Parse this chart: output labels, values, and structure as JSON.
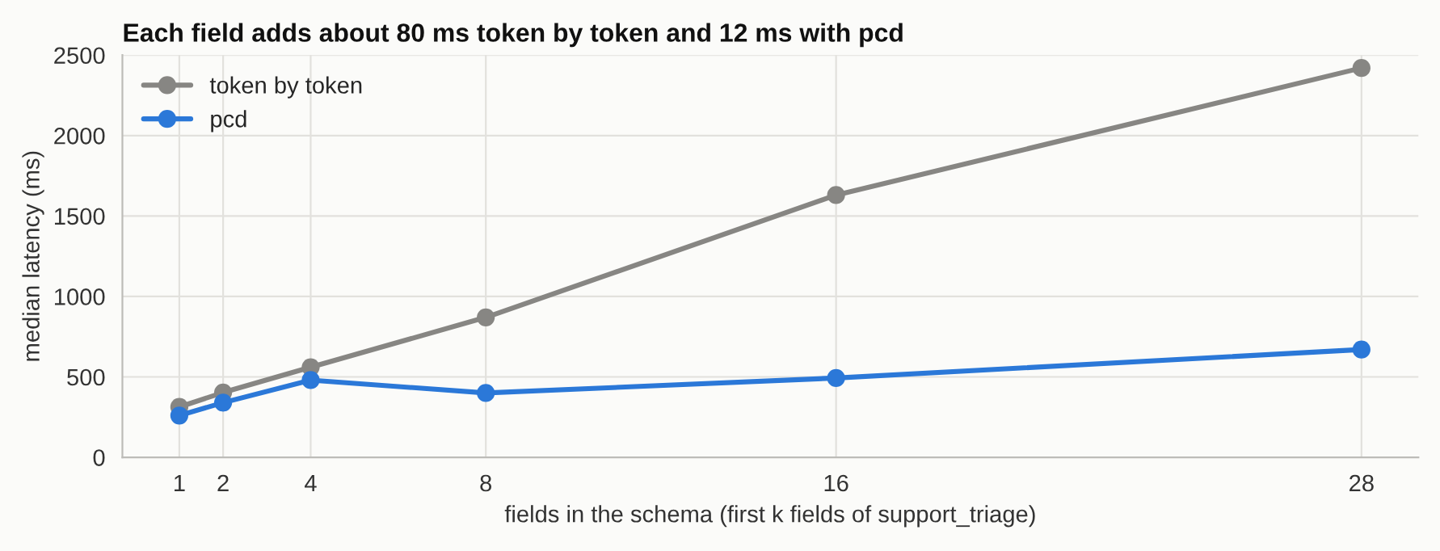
{
  "chart_data": {
    "type": "line",
    "title": "Each field adds about 80 ms token by token and 12 ms with pcd",
    "xlabel": "fields in the schema (first k fields of support_triage)",
    "ylabel": "median latency (ms)",
    "x": [
      1,
      2,
      4,
      8,
      16,
      28
    ],
    "series": [
      {
        "name": "token by token",
        "color": "#878683",
        "values": [
          313,
          403,
          560,
          870,
          1630,
          2420
        ]
      },
      {
        "name": "pcd",
        "color": "#2b78d8",
        "values": [
          260,
          340,
          480,
          400,
          493,
          670
        ]
      }
    ],
    "xlim": [
      -0.3,
      29.3
    ],
    "xticks": [
      1,
      2,
      4,
      8,
      16,
      28
    ],
    "ylim": [
      0,
      2500
    ],
    "yticks": [
      0,
      500,
      1000,
      1500,
      2000,
      2500
    ],
    "grid": true,
    "legend": "top left",
    "marker": "circle",
    "line_style": "solid"
  }
}
